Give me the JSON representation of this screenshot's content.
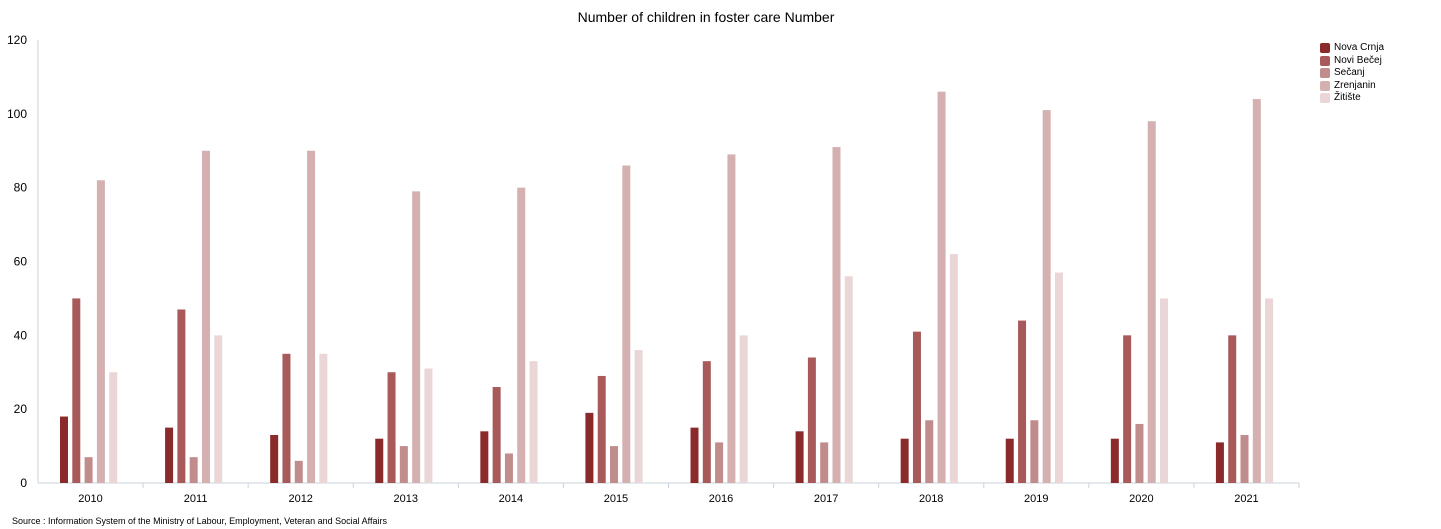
{
  "chart_data": {
    "type": "bar",
    "title": "Number of children in foster care Number",
    "xlabel": "",
    "ylabel": "",
    "ylim": [
      0,
      120
    ],
    "yticks": [
      0,
      20,
      40,
      60,
      80,
      100,
      120
    ],
    "legend_position": "top-right",
    "grid": false,
    "categories": [
      "2010",
      "2011",
      "2012",
      "2013",
      "2014",
      "2015",
      "2016",
      "2017",
      "2018",
      "2019",
      "2020",
      "2021"
    ],
    "series": [
      {
        "name": "Nova Crnja",
        "color": "#8b2a2a",
        "values": [
          18,
          15,
          13,
          12,
          14,
          19,
          15,
          14,
          12,
          12,
          12,
          11
        ]
      },
      {
        "name": "Novi Bečej",
        "color": "#a85a5a",
        "values": [
          50,
          47,
          35,
          30,
          26,
          29,
          33,
          34,
          41,
          44,
          40,
          40
        ]
      },
      {
        "name": "Sečanj",
        "color": "#c08c8c",
        "values": [
          7,
          7,
          6,
          10,
          8,
          10,
          11,
          11,
          17,
          17,
          16,
          13
        ]
      },
      {
        "name": "Zrenjanin",
        "color": "#d4b0b0",
        "values": [
          82,
          90,
          90,
          79,
          80,
          86,
          89,
          91,
          106,
          101,
          98,
          104
        ]
      },
      {
        "name": "Žitište",
        "color": "#ead6d6",
        "values": [
          30,
          40,
          35,
          31,
          33,
          36,
          40,
          56,
          62,
          57,
          50,
          50
        ]
      }
    ]
  },
  "source": "Source : Information System of the Ministry of Labour, Employment, Veteran and Social Affairs"
}
